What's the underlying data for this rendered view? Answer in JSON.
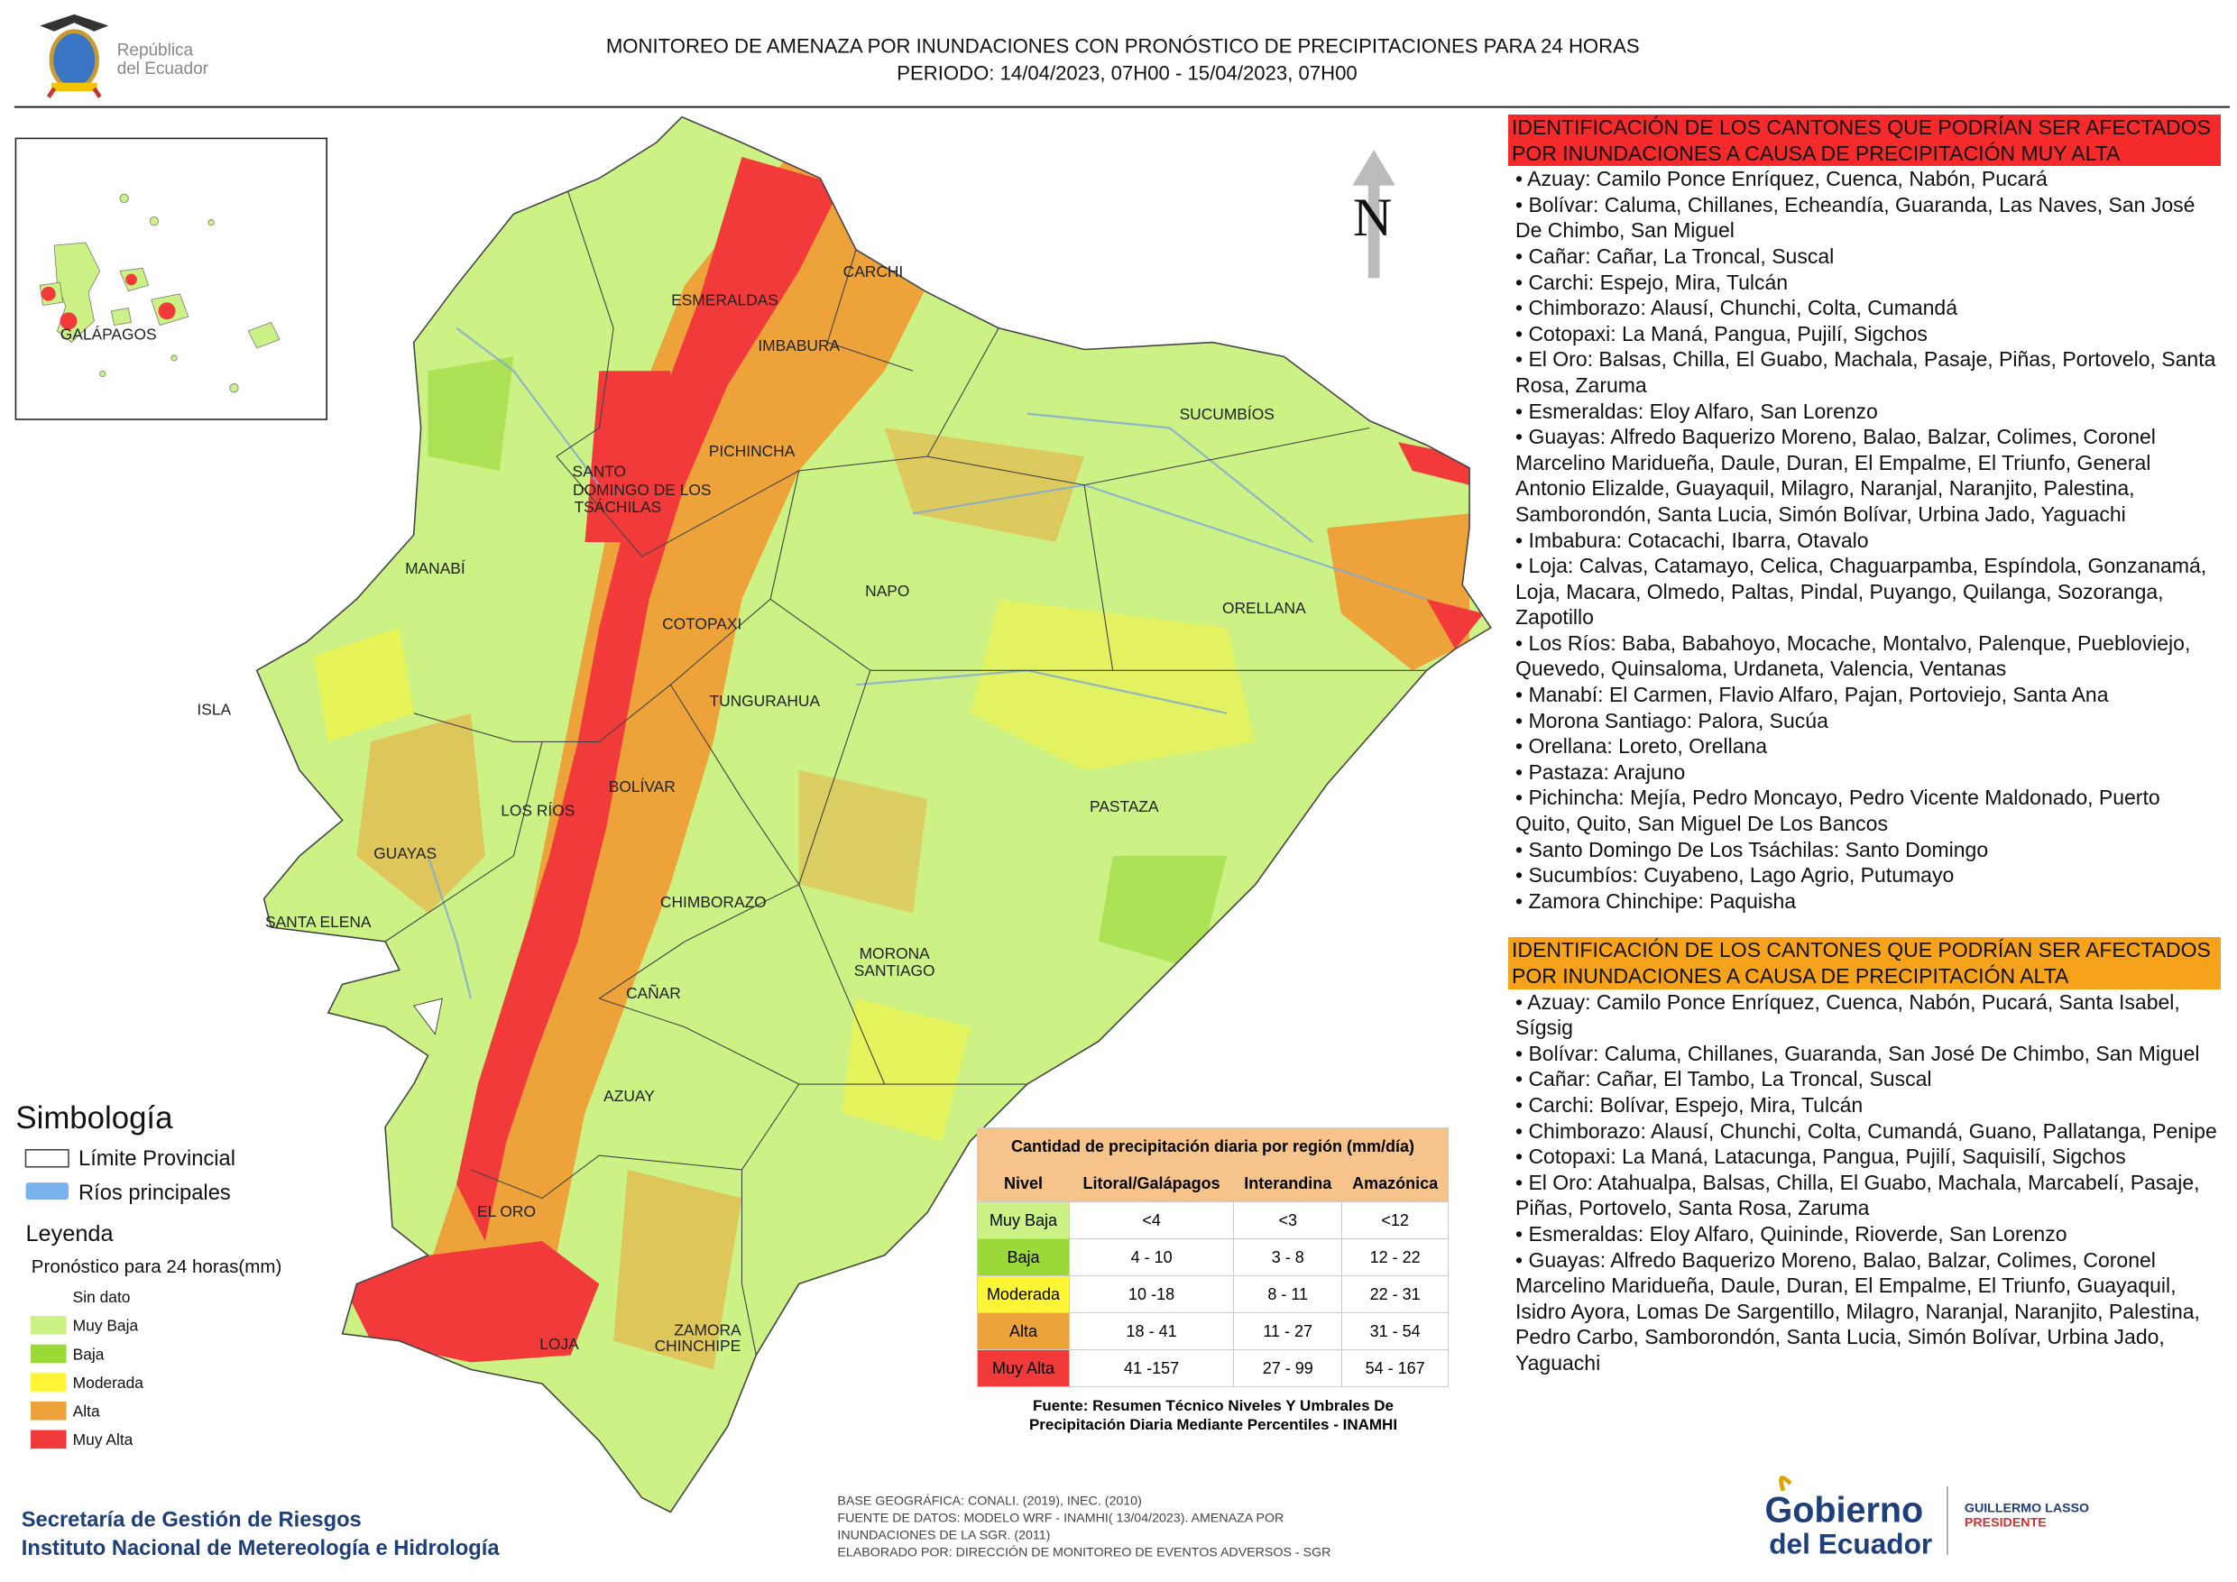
{
  "header": {
    "logo_text": [
      "República",
      "del Ecuador"
    ],
    "title": [
      "MONITOREO DE AMENAZA POR INUNDACIONES  CON PRONÓSTICO DE  PRECIPITACIONES PARA 24 HORAS",
      "PERIODO: 14/04/2023, 07H00 - 15/04/2023, 07H00"
    ]
  },
  "inset": {
    "label": "GALÁPAGOS"
  },
  "map": {
    "north": "N",
    "labels": [
      "CARCHI",
      "ESMERALDAS",
      "IMBABURA",
      "SUCUMBÍOS",
      "SANTO",
      "DOMINGO DE LOS",
      "TSÁCHILAS",
      "PICHINCHA",
      "MANABÍ",
      "NAPO",
      "ORELLANA",
      "COTOPAXI",
      "ISLA",
      "TUNGURAHUA",
      "BOLÍVAR",
      "LOS RÍOS",
      "PASTAZA",
      "GUAYAS",
      "CHIMBORAZO",
      "SANTA ELENA",
      "MORONA",
      "SANTIAGO",
      "CAÑAR",
      "AZUAY",
      "EL ORO",
      "ZAMORA",
      "CHINCHIPE",
      "LOJA"
    ]
  },
  "legend": {
    "title": "Simbología",
    "symbols": [
      "Límite Provincial",
      "Ríos principales"
    ],
    "subtitle": "Leyenda",
    "forecast": "Pronóstico para 24 horas(mm)",
    "classes": [
      {
        "label": "Sin dato",
        "color": "#ffffff"
      },
      {
        "label": "Muy Baja",
        "color": "#ccf184"
      },
      {
        "label": "Baja",
        "color": "#9ad937"
      },
      {
        "label": "Moderada",
        "color": "#fdf535"
      },
      {
        "label": "Alta",
        "color": "#eda33a"
      },
      {
        "label": "Muy Alta",
        "color": "#f23a3a"
      }
    ]
  },
  "table": {
    "title": "Cantidad de precipitación diaria por región (mm/día)",
    "headers": [
      "Nivel",
      "Litoral/Galápagos",
      "Interandina",
      "Amazónica"
    ],
    "rows": [
      {
        "cells": [
          "Muy Baja",
          "<4",
          "<3",
          "<12"
        ],
        "color": "#ccf184"
      },
      {
        "cells": [
          "Baja",
          "4 - 10",
          "3 - 8",
          "12 - 22"
        ],
        "color": "#9ad937"
      },
      {
        "cells": [
          "Moderada",
          "10 -18",
          "8 - 11",
          "22 - 31"
        ],
        "color": "#fdf535"
      },
      {
        "cells": [
          "Alta",
          "18 - 41",
          "11 - 27",
          "31 - 54"
        ],
        "color": "#eda33a"
      },
      {
        "cells": [
          "Muy Alta",
          "41 -157",
          "27 - 99",
          "54 - 167"
        ],
        "color": "#f23a3a"
      }
    ],
    "source": [
      "Fuente: Resumen Técnico Niveles Y Umbrales De",
      "Precipitación Diaria Mediante Percentiles - INAMHI"
    ]
  },
  "panel": {
    "sections": [
      {
        "heading": "IDENTIFICACIÓN DE LOS CANTONES QUE PODRÍAN SER AFECTADOS POR INUNDACIONES  A CAUSA DE PRECIPITACIÓN MUY ALTA",
        "color": "#f62a2a",
        "items": [
          "• Azuay: Camilo Ponce Enríquez, Cuenca, Nabón, Pucará",
          "• Bolívar: Caluma, Chillanes, Echeandía, Guaranda, Las Naves, San José De Chimbo, San Miguel",
          "• Cañar: Cañar, La Troncal, Suscal",
          "• Carchi: Espejo, Mira, Tulcán",
          "• Chimborazo: Alausí, Chunchi, Colta, Cumandá",
          "• Cotopaxi: La Maná, Pangua, Pujilí, Sigchos",
          "• El Oro: Balsas, Chilla, El Guabo, Machala, Pasaje, Piñas, Portovelo, Santa Rosa, Zaruma",
          "• Esmeraldas: Eloy Alfaro, San Lorenzo",
          "• Guayas: Alfredo Baquerizo Moreno, Balao, Balzar, Colimes, Coronel Marcelino Maridueña, Daule, Duran, El Empalme, El Triunfo, General Antonio Elizalde, Guayaquil, Milagro, Naranjal, Naranjito, Palestina, Samborondón, Santa Lucia, Simón Bolívar, Urbina Jado, Yaguachi",
          "• Imbabura: Cotacachi, Ibarra, Otavalo",
          "• Loja: Calvas, Catamayo, Celica, Chaguarpamba, Espíndola, Gonzanamá, Loja, Macara, Olmedo, Paltas, Pindal, Puyango, Quilanga, Sozoranga, Zapotillo",
          "• Los Ríos: Baba, Babahoyo, Mocache, Montalvo, Palenque, Puebloviejo, Quevedo, Quinsaloma, Urdaneta, Valencia, Ventanas",
          "• Manabí: El Carmen, Flavio Alfaro, Pajan, Portoviejo, Santa Ana",
          "• Morona Santiago: Palora, Sucúa",
          "• Orellana: Loreto, Orellana",
          "• Pastaza: Arajuno",
          "• Pichincha: Mejía, Pedro Moncayo, Pedro Vicente Maldonado, Puerto Quito, Quito, San Miguel De Los Bancos",
          "• Santo Domingo De Los Tsáchilas: Santo Domingo",
          "• Sucumbíos: Cuyabeno, Lago Agrio, Putumayo",
          "• Zamora Chinchipe: Paquisha"
        ]
      },
      {
        "heading": "IDENTIFICACIÓN DE LOS CANTONES QUE  PODRÍAN SER AFECTADOS POR INUNDACIONES  A CAUSA DE PRECIPITACIÓN ALTA",
        "color": "#f7a21b",
        "items": [
          "• Azuay: Camilo Ponce Enríquez, Cuenca, Nabón, Pucará, Santa Isabel, Sígsig",
          "• Bolívar: Caluma, Chillanes, Guaranda, San José De Chimbo, San Miguel",
          "• Cañar: Cañar, El Tambo, La Troncal, Suscal",
          "• Carchi: Bolívar, Espejo, Mira, Tulcán",
          "• Chimborazo: Alausí, Chunchi, Colta, Cumandá, Guano, Pallatanga, Penipe",
          "• Cotopaxi: La Maná, Latacunga, Pangua, Pujilí, Saquisilí, Sigchos",
          "• El Oro: Atahualpa, Balsas, Chilla, El Guabo, Machala, Marcabelí, Pasaje, Piñas, Portovelo, Santa Rosa, Zaruma",
          "• Esmeraldas: Eloy Alfaro, Quininde, Rioverde, San Lorenzo",
          "• Guayas: Alfredo Baquerizo Moreno, Balao, Balzar, Colimes, Coronel Marcelino Maridueña, Daule, Duran, El Empalme, El Triunfo, Guayaquil, Isidro Ayora, Lomas De Sargentillo, Milagro, Naranjal, Naranjito, Palestina, Pedro Carbo, Samborondón, Santa Lucia, Simón Bolívar, Urbina Jado, Yaguachi"
        ]
      }
    ]
  },
  "footer": {
    "institutions": [
      "Secretaría de Gestión de Riesgos",
      "Instituto Nacional de Metereología e Hidrología"
    ],
    "notes": [
      "BASE GEOGRÁFICA: CONALI. (2019), INEC. (2010)",
      "FUENTE DE DATOS: MODELO WRF - INAMHI( 13/04/2023).  AMENAZA POR",
      "INUNDACIONES DE LA SGR. (2011)",
      "ELABORADO POR: DIRECCIÓN DE MONITOREO DE EVENTOS ADVERSOS - SGR"
    ],
    "gov_logo": [
      "Gobierno",
      "del Ecuador"
    ],
    "president": [
      "GUILLERMO LASSO",
      "PRESIDENTE"
    ]
  }
}
